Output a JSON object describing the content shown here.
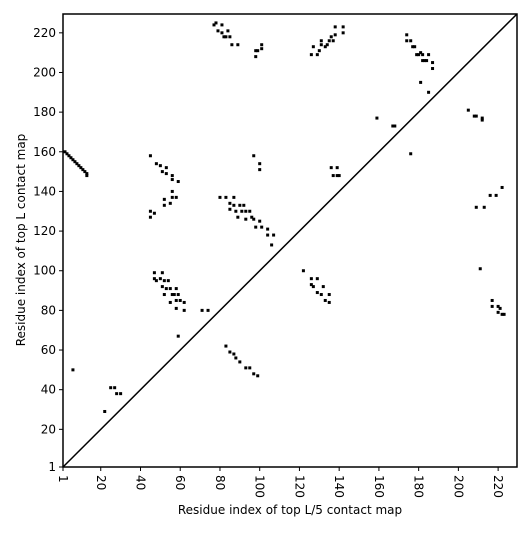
{
  "chart_data": {
    "type": "scatter",
    "xlabel": "Residue index of top L/5 contact map",
    "ylabel": "Residue index of top L contact map",
    "xlim": [
      1,
      229.5
    ],
    "ylim": [
      1,
      229.5
    ],
    "xticks": [
      1,
      20,
      40,
      60,
      80,
      100,
      120,
      140,
      160,
      180,
      200,
      220
    ],
    "yticks": [
      1,
      20,
      40,
      60,
      80,
      100,
      120,
      140,
      160,
      180,
      200,
      220
    ],
    "color": "#000000",
    "diagonal": true,
    "x": [
      2,
      3,
      4,
      5,
      6,
      7,
      8,
      9,
      10,
      11,
      12,
      13,
      13,
      6,
      22,
      25,
      27,
      28,
      30,
      45,
      45,
      45,
      47,
      48,
      50,
      51,
      53,
      53,
      56,
      56,
      56,
      56,
      59,
      58,
      52,
      52,
      55,
      47,
      47,
      48,
      50,
      51,
      51,
      52,
      53,
      54,
      55,
      56,
      57,
      58,
      58,
      59,
      60,
      62,
      62,
      55,
      52,
      58,
      59,
      71,
      74,
      80,
      83,
      85,
      85,
      87,
      87,
      88,
      89,
      90,
      91,
      92,
      93,
      93,
      95,
      96,
      97,
      98,
      100,
      101,
      104,
      104,
      107,
      106,
      97,
      100,
      100,
      83,
      85,
      87,
      88,
      90,
      93,
      95,
      97,
      99,
      77,
      78,
      79,
      81,
      81,
      82,
      83,
      84,
      85,
      86,
      89,
      98,
      99,
      98,
      101,
      101,
      126,
      127,
      129,
      130,
      131,
      131,
      133,
      134,
      135,
      136,
      137,
      138,
      138,
      142,
      142,
      122,
      126,
      126,
      127,
      129,
      129,
      131,
      132,
      133,
      135,
      135,
      136,
      137,
      139,
      139,
      140,
      159,
      167,
      168,
      174,
      174,
      176,
      177,
      178,
      179,
      180,
      181,
      182,
      182,
      183,
      184,
      185,
      187,
      187,
      181,
      185,
      176,
      205,
      208,
      209,
      212,
      212,
      209,
      211,
      213,
      216,
      217,
      217,
      219,
      220,
      221,
      220,
      222,
      223,
      222
    ],
    "values": [
      160,
      159,
      158,
      157,
      156,
      155,
      154,
      153,
      152,
      151,
      150,
      149,
      148,
      50,
      29,
      41,
      41,
      38,
      38,
      158,
      130,
      127,
      129,
      154,
      153,
      150,
      149,
      152,
      148,
      146,
      140,
      137,
      145,
      137,
      136,
      133,
      134,
      99,
      96,
      95,
      96,
      99,
      92,
      95,
      91,
      95,
      91,
      88,
      88,
      85,
      91,
      88,
      85,
      84,
      80,
      84,
      88,
      81,
      67,
      80,
      80,
      137,
      137,
      134,
      131,
      137,
      133,
      130,
      127,
      133,
      130,
      133,
      130,
      126,
      130,
      127,
      126,
      122,
      125,
      122,
      121,
      118,
      118,
      113,
      158,
      154,
      151,
      62,
      59,
      58,
      56,
      54,
      51,
      51,
      48,
      47,
      224,
      225,
      221,
      224,
      220,
      218,
      218,
      221,
      218,
      214,
      214,
      211,
      211,
      208,
      214,
      212,
      209,
      213,
      209,
      211,
      214,
      216,
      213,
      214,
      216,
      218,
      216,
      219,
      223,
      220,
      223,
      100,
      96,
      93,
      92,
      96,
      89,
      88,
      92,
      85,
      84,
      88,
      152,
      148,
      148,
      152,
      148,
      177,
      173,
      173,
      219,
      216,
      216,
      213,
      213,
      209,
      209,
      210,
      209,
      206,
      206,
      206,
      209,
      205,
      202,
      195,
      190,
      159,
      181,
      178,
      178,
      177,
      176,
      132,
      101,
      132,
      138,
      85,
      82,
      138,
      82,
      81,
      79,
      78,
      78,
      142
    ]
  }
}
